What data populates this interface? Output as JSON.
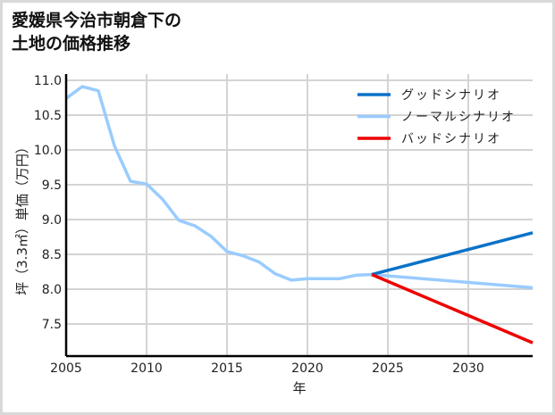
{
  "title": "愛媛県今治市朝倉下の\n土地の価格推移",
  "chart_data": {
    "type": "line",
    "title": "愛媛県今治市朝倉下の土地の価格推移",
    "xlabel": "年",
    "ylabel": "坪（3.3㎡）単価（万円）",
    "xlim": [
      2005,
      2034
    ],
    "ylim": [
      7.04,
      11.0
    ],
    "xticks": [
      2005,
      2010,
      2015,
      2020,
      2025,
      2030
    ],
    "yticks": [
      7.5,
      8.0,
      8.5,
      9.0,
      9.5,
      10.0,
      10.5,
      11.0
    ],
    "ytick_labels": [
      "7.5",
      "8.0",
      "8.5",
      "9.0",
      "9.5",
      "10.0",
      "10.5",
      "11.0"
    ],
    "grid": true,
    "legend_position": "upper right",
    "series": [
      {
        "name": "グッドシナリオ",
        "color": "#0a72c8",
        "x": [
          2024,
          2034
        ],
        "y": [
          8.21,
          8.81
        ]
      },
      {
        "name": "ノーマルシナリオ",
        "color": "#99ccff",
        "x": [
          2005,
          2006,
          2007,
          2008,
          2009,
          2010,
          2011,
          2012,
          2013,
          2014,
          2015,
          2016,
          2017,
          2018,
          2019,
          2020,
          2021,
          2022,
          2023,
          2024,
          2034
        ],
        "y": [
          10.74,
          10.91,
          10.85,
          10.06,
          9.55,
          9.51,
          9.29,
          8.99,
          8.91,
          8.76,
          8.54,
          8.48,
          8.39,
          8.22,
          8.13,
          8.15,
          8.15,
          8.15,
          8.2,
          8.21,
          8.02
        ]
      },
      {
        "name": "バッドシナリオ",
        "color": "#ee0000",
        "x": [
          2024,
          2034
        ],
        "y": [
          8.21,
          7.23
        ]
      }
    ]
  }
}
